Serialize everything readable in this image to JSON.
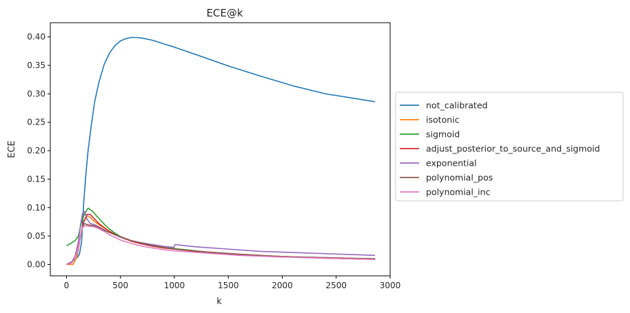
{
  "chart_data": {
    "type": "line",
    "title": "ECE@k",
    "xlabel": "k",
    "ylabel": "ECE",
    "xlim": [
      -150,
      3000
    ],
    "ylim": [
      -0.02,
      0.425
    ],
    "xticks": [
      0,
      500,
      1000,
      1500,
      2000,
      2500,
      3000
    ],
    "yticks": [
      0.0,
      0.05,
      0.1,
      0.15,
      0.2,
      0.25,
      0.3,
      0.35,
      0.4
    ],
    "xtick_labels": [
      "0",
      "500",
      "1000",
      "1500",
      "2000",
      "2500",
      "3000"
    ],
    "ytick_labels": [
      "0.00",
      "0.05",
      "0.10",
      "0.15",
      "0.20",
      "0.25",
      "0.30",
      "0.35",
      "0.40"
    ],
    "grid": false,
    "legend_position": "center-right-outside",
    "series": [
      {
        "name": "not_calibrated",
        "color": "#1f77b4",
        "x": [
          0,
          50,
          100,
          120,
          140,
          160,
          180,
          200,
          230,
          260,
          300,
          350,
          400,
          450,
          500,
          550,
          600,
          650,
          700,
          800,
          900,
          1000,
          1200,
          1500,
          1800,
          2100,
          2400,
          2700,
          2860
        ],
        "y": [
          0.0,
          0.005,
          0.012,
          0.018,
          0.04,
          0.11,
          0.16,
          0.2,
          0.245,
          0.285,
          0.32,
          0.352,
          0.372,
          0.385,
          0.393,
          0.397,
          0.399,
          0.399,
          0.398,
          0.394,
          0.388,
          0.382,
          0.369,
          0.349,
          0.331,
          0.314,
          0.3,
          0.291,
          0.286
        ]
      },
      {
        "name": "isotonic",
        "color": "#ff7f0e",
        "x": [
          0,
          60,
          100,
          130,
          160,
          190,
          220,
          250,
          300,
          350,
          400,
          500,
          600,
          700,
          800,
          900,
          1000,
          1300,
          1600,
          2000,
          2400,
          2860
        ],
        "y": [
          0.0,
          0.0,
          0.015,
          0.05,
          0.075,
          0.085,
          0.083,
          0.077,
          0.07,
          0.064,
          0.058,
          0.048,
          0.041,
          0.036,
          0.032,
          0.029,
          0.027,
          0.021,
          0.017,
          0.014,
          0.011,
          0.009
        ]
      },
      {
        "name": "sigmoid",
        "color": "#2ca02c",
        "x": [
          0,
          40,
          80,
          110,
          140,
          170,
          200,
          240,
          280,
          320,
          360,
          400,
          450,
          500,
          600,
          700,
          800,
          900,
          1000,
          1300,
          1600,
          2000,
          2400,
          2860
        ],
        "y": [
          0.033,
          0.037,
          0.042,
          0.05,
          0.075,
          0.09,
          0.099,
          0.094,
          0.085,
          0.077,
          0.069,
          0.062,
          0.055,
          0.049,
          0.042,
          0.037,
          0.033,
          0.03,
          0.028,
          0.022,
          0.018,
          0.014,
          0.012,
          0.01
        ]
      },
      {
        "name": "adjust_posterior_to_source_and_sigmoid",
        "color": "#d62728",
        "x": [
          0,
          50,
          100,
          130,
          160,
          190,
          220,
          250,
          300,
          350,
          400,
          500,
          600,
          700,
          800,
          900,
          1000,
          1300,
          1600,
          2000,
          2400,
          2860
        ],
        "y": [
          0.0,
          0.004,
          0.02,
          0.05,
          0.075,
          0.088,
          0.088,
          0.082,
          0.072,
          0.065,
          0.058,
          0.048,
          0.041,
          0.036,
          0.032,
          0.029,
          0.027,
          0.021,
          0.017,
          0.014,
          0.011,
          0.009
        ]
      },
      {
        "name": "exponential",
        "color": "#9467bd",
        "x": [
          0,
          50,
          80,
          110,
          130,
          150,
          170,
          190,
          220,
          260,
          300,
          350,
          400,
          500,
          600,
          700,
          800,
          900,
          995,
          1005,
          1200,
          1500,
          1800,
          2100,
          2400,
          2860
        ],
        "y": [
          0.0,
          0.005,
          0.015,
          0.04,
          0.07,
          0.09,
          0.093,
          0.08,
          0.072,
          0.07,
          0.066,
          0.061,
          0.056,
          0.048,
          0.042,
          0.038,
          0.035,
          0.032,
          0.03,
          0.035,
          0.031,
          0.027,
          0.023,
          0.021,
          0.019,
          0.016
        ]
      },
      {
        "name": "polynomial_pos",
        "color": "#8c564b",
        "x": [
          0,
          50,
          100,
          130,
          150,
          170,
          190,
          220,
          260,
          300,
          350,
          400,
          500,
          600,
          700,
          800,
          900,
          1000,
          1300,
          1600,
          2000,
          2400,
          2860
        ],
        "y": [
          0.0,
          0.003,
          0.02,
          0.05,
          0.068,
          0.072,
          0.07,
          0.069,
          0.068,
          0.065,
          0.06,
          0.056,
          0.049,
          0.042,
          0.037,
          0.033,
          0.03,
          0.027,
          0.022,
          0.018,
          0.014,
          0.012,
          0.01
        ]
      },
      {
        "name": "polynomial_inc",
        "color": "#e377c2",
        "x": [
          0,
          50,
          100,
          130,
          150,
          170,
          190,
          220,
          260,
          300,
          350,
          400,
          500,
          600,
          700,
          800,
          900,
          1000,
          1300,
          1600,
          2000,
          2400,
          2860
        ],
        "y": [
          0.0,
          0.003,
          0.02,
          0.05,
          0.065,
          0.068,
          0.068,
          0.067,
          0.066,
          0.063,
          0.058,
          0.052,
          0.043,
          0.037,
          0.032,
          0.029,
          0.026,
          0.024,
          0.02,
          0.016,
          0.013,
          0.011,
          0.009
        ]
      }
    ]
  }
}
